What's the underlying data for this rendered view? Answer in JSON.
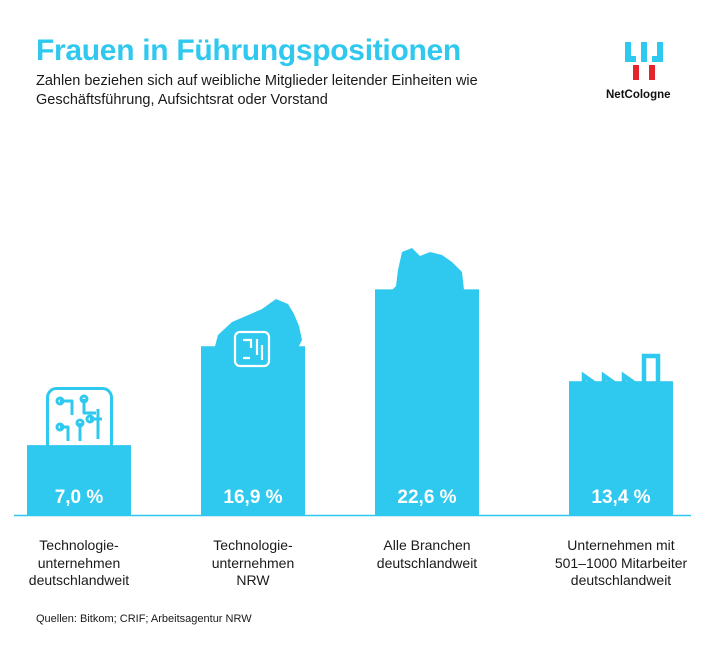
{
  "header": {
    "title": "Frauen in Führungspositionen",
    "subtitle": "Zahlen beziehen sich auf weibliche Mitglieder leitender Einheiten wie Geschäftsführung, Aufsichtsrat oder Vorstand"
  },
  "brand": {
    "name": "NetCologne",
    "accent": "#2fc8ee",
    "logo_red": "#e3262d"
  },
  "icons": [
    "circuit-chip-icon",
    "nrw-map-icon",
    "germany-map-icon",
    "factory-icon"
  ],
  "chart_data": {
    "type": "bar",
    "categories": [
      "Technologie-\nunternehmen\ndeutschlandweit",
      "Technologie-\nunternehmen\nNRW",
      "Alle Branchen\ndeutschlandweit",
      "Unternehmen mit\n501–1000 Mitarbeiter\ndeutschlandweit"
    ],
    "values": [
      7.0,
      16.9,
      22.6,
      13.4
    ],
    "value_labels": [
      "7,0 %",
      "16,9 %",
      "22,6 %",
      "13,4 %"
    ],
    "ylim": [
      0,
      26
    ],
    "grid": false,
    "bar_color": "#2fc8ee"
  },
  "footer": {
    "source": "Quellen: Bitkom; CRIF; Arbeitsagentur NRW"
  }
}
